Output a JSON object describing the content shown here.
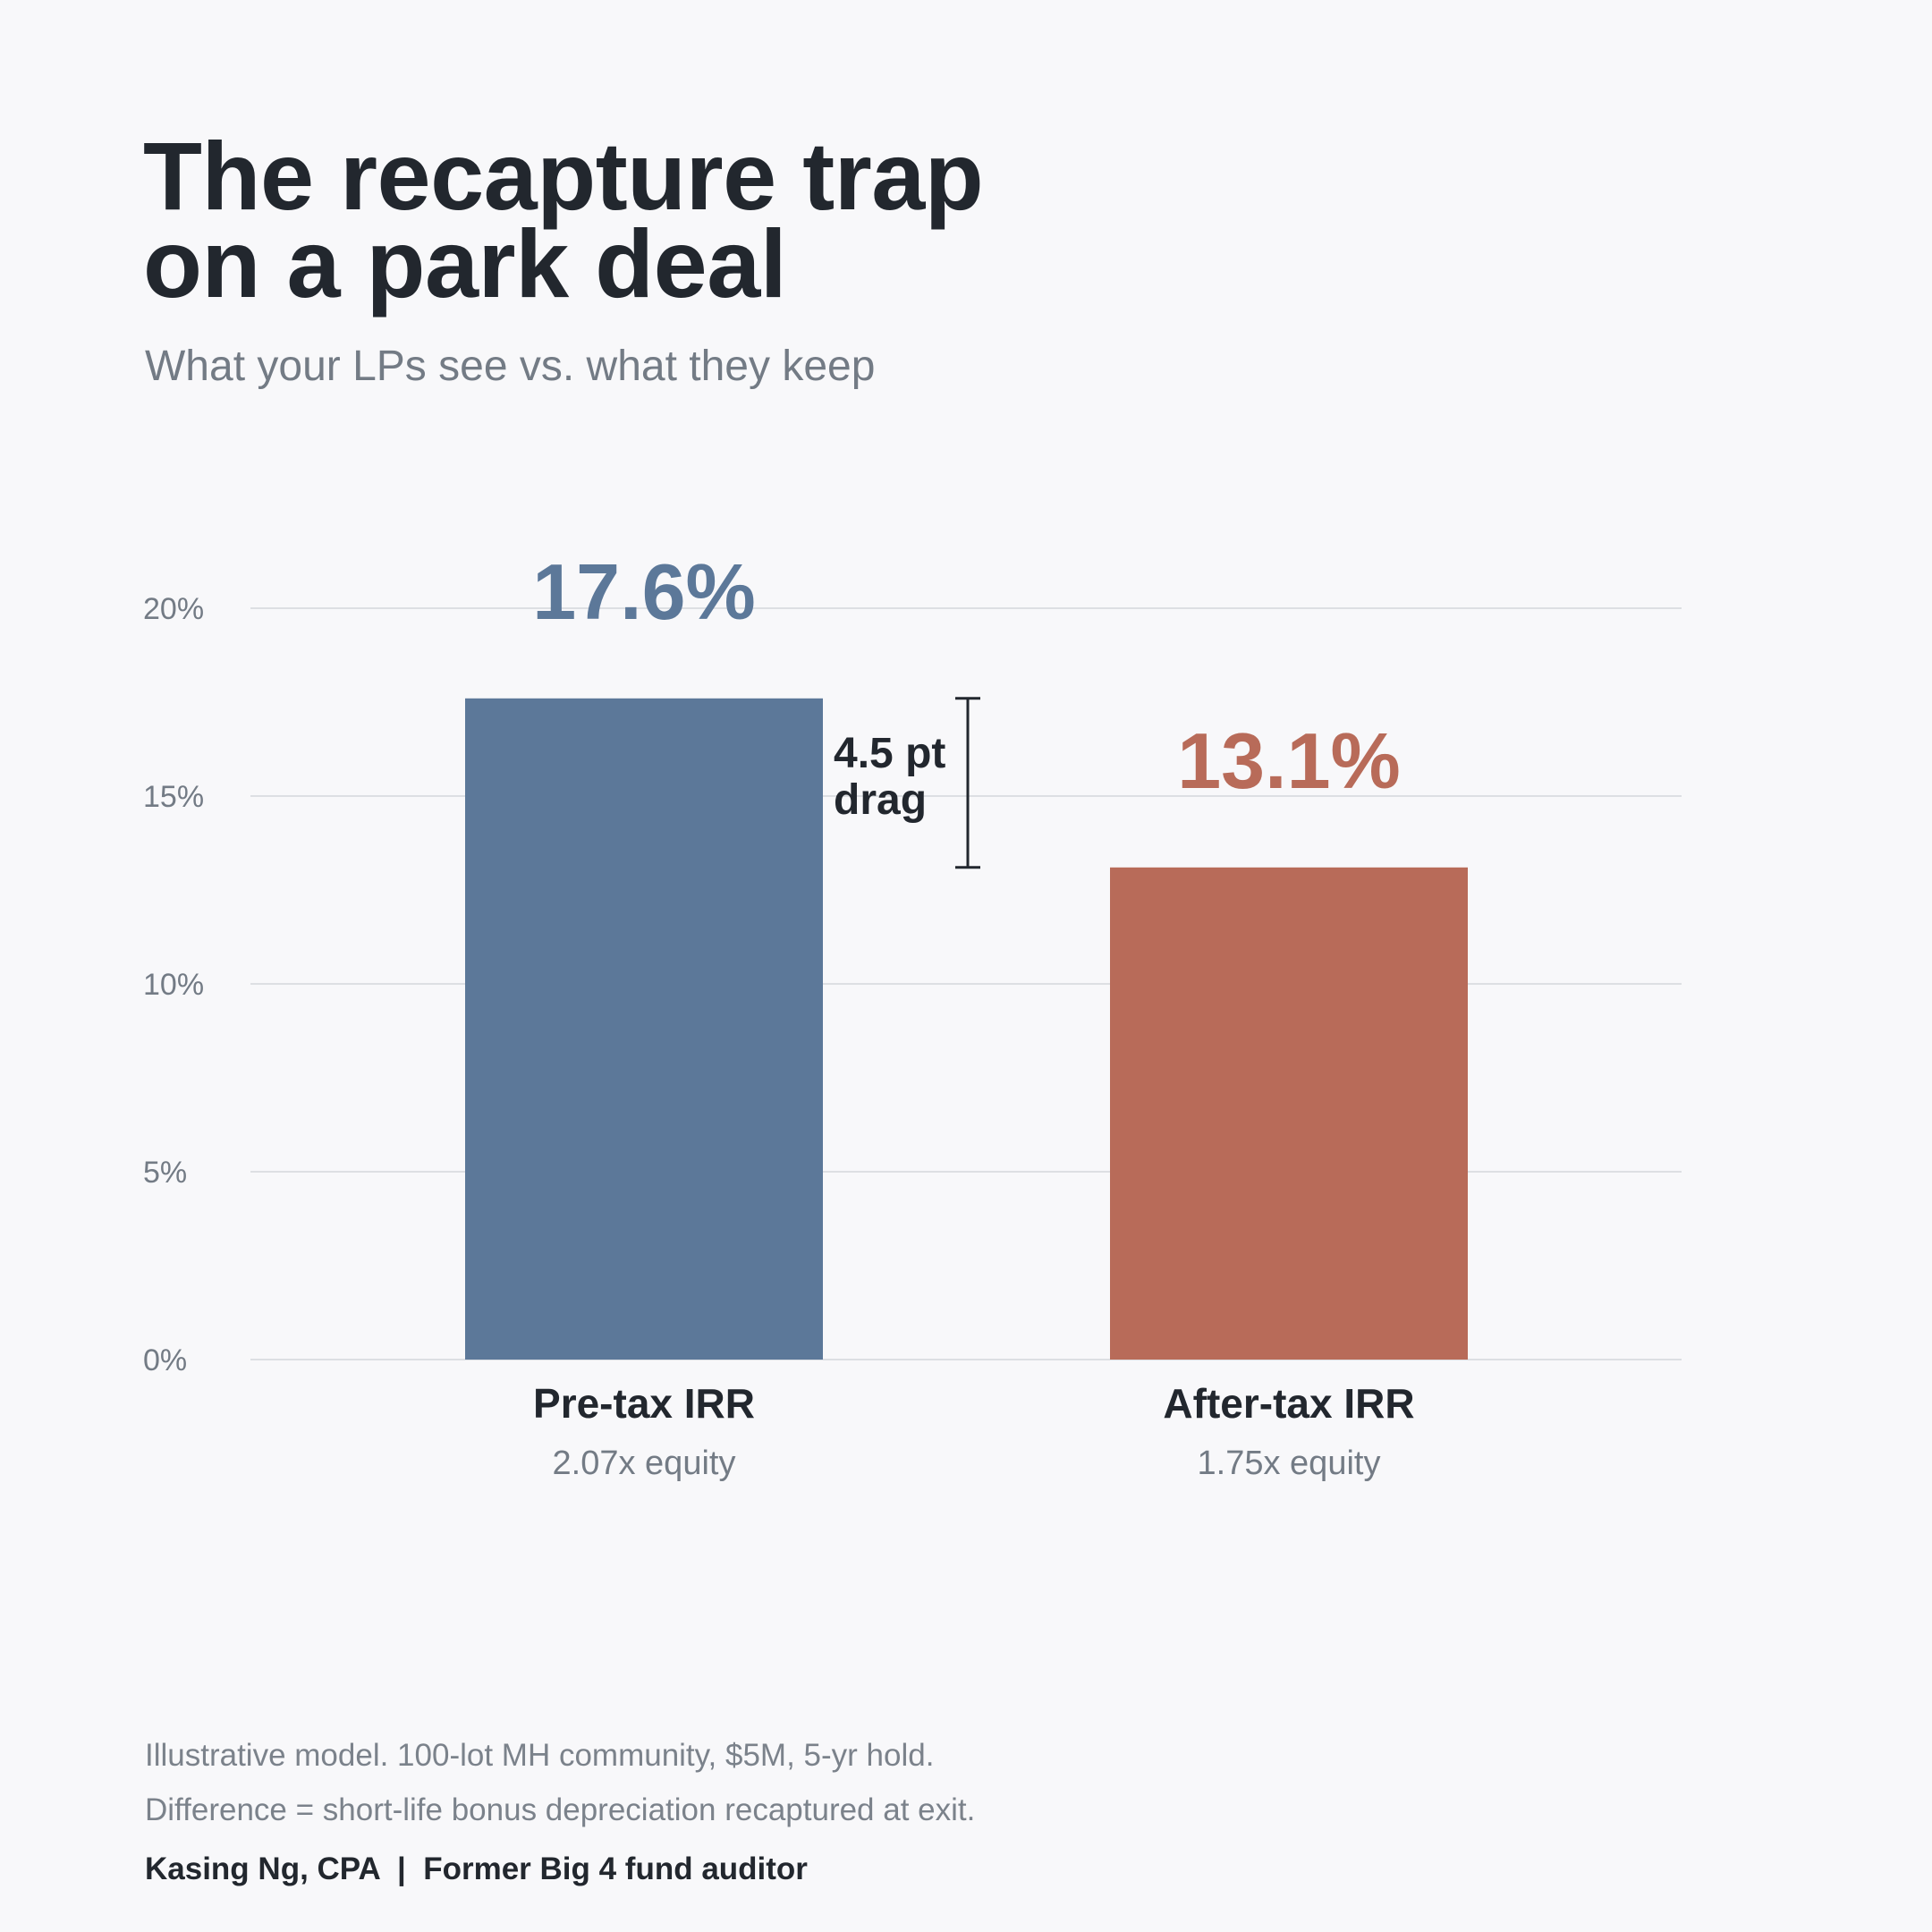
{
  "header": {
    "title_line1": "The recapture trap",
    "title_line2": "on a park deal",
    "subtitle": "What your LPs see vs. what they keep"
  },
  "chart_data": {
    "type": "bar",
    "categories": [
      "Pre-tax IRR",
      "After-tax IRR"
    ],
    "sublabels": [
      "2.07x equity",
      "1.75x equity"
    ],
    "values": [
      17.6,
      13.1
    ],
    "value_labels": [
      "17.6%",
      "13.1%"
    ],
    "colors": [
      "#5c7899",
      "#b86b59"
    ],
    "yticks": [
      0,
      5,
      10,
      15,
      20
    ],
    "ytick_labels": [
      "0%",
      "5%",
      "10%",
      "15%",
      "20%"
    ],
    "ylim": [
      0,
      20
    ],
    "grid": true,
    "annotation": {
      "line1": "4.5 pt",
      "line2": "drag",
      "from": 17.6,
      "to": 13.1
    }
  },
  "footer": {
    "note1": "Illustrative model. 100-lot MH community, $5M, 5-yr hold.",
    "note2": "Difference = short-life bonus depreciation recaptured at exit.",
    "byline": "Kasing Ng, CPA  |  Former Big 4 fund auditor"
  }
}
